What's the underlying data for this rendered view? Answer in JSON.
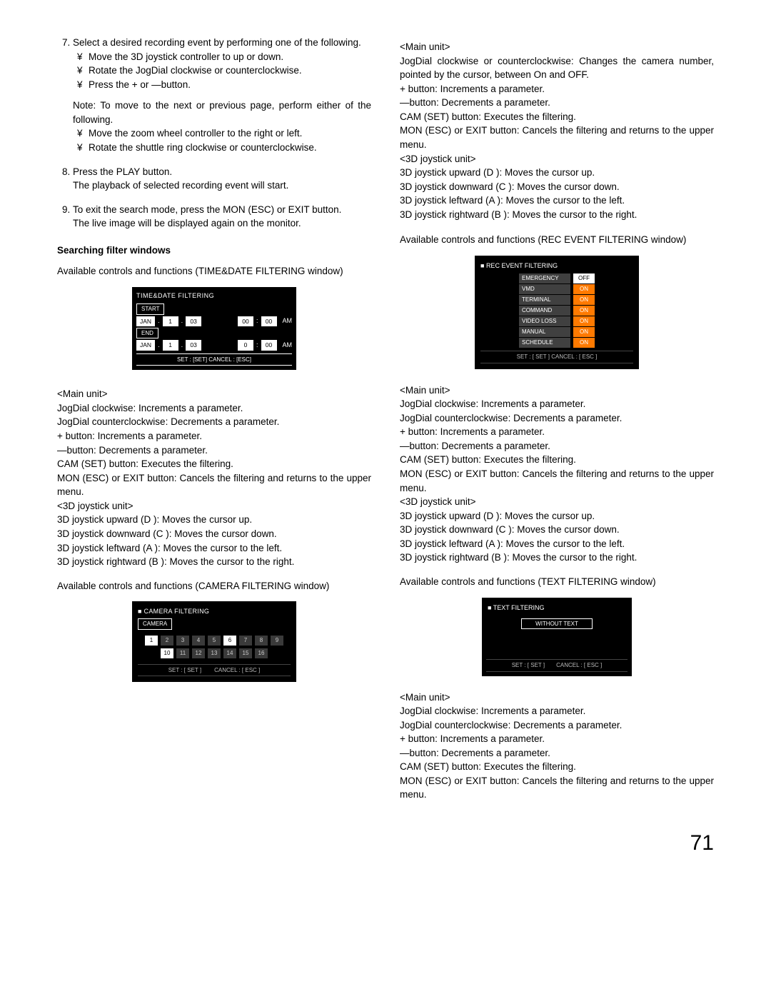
{
  "pageNumber": "71",
  "left": {
    "step7": {
      "text": "Select a desired recording event by performing one of the following.",
      "bullets": [
        "Move the 3D joystick controller to up or down.",
        "Rotate the JogDial clockwise or counterclockwise.",
        "Press the + or —button."
      ],
      "note": "Note: To move to the next or previous page, perform either of the following.",
      "noteBullets": [
        "Move the zoom wheel controller to the right or left.",
        "Rotate the shuttle ring clockwise or counterclockwise."
      ]
    },
    "step8": {
      "l1": "Press the PLAY button.",
      "l2": "The playback of selected recording event will start."
    },
    "step9": {
      "l1": "To exit the search mode, press the MON (ESC) or EXIT button.",
      "l2": "The live image will be displayed again on the monitor."
    },
    "searchingTitle": "Searching filter windows",
    "avail_td": "Available controls and functions (TIME&DATE FILTERING window)",
    "avail_cam": "Available controls and functions (CAMERA FILTERING window)",
    "panel_td": {
      "title": "TIME&DATE FILTERING",
      "startLabel": "START",
      "endLabel": "END",
      "row1": {
        "mon": "JAN",
        "d": "1",
        "y": "03",
        "h": "00",
        "m": "00",
        "ampm": "AM"
      },
      "row2": {
        "mon": "JAN",
        "d": "1",
        "y": "03",
        "h": "0",
        "m": "00",
        "ampm": "AM"
      },
      "foot": "SET : [SET]  CANCEL : [ESC]"
    },
    "panel_cam": {
      "title": "CAMERA FILTERING",
      "sub": "CAMERA",
      "cells": [
        {
          "n": "1",
          "on": true
        },
        {
          "n": "2",
          "on": false
        },
        {
          "n": "3",
          "on": false
        },
        {
          "n": "4",
          "on": false
        },
        {
          "n": "5",
          "on": false
        },
        {
          "n": "6",
          "on": true
        },
        {
          "n": "7",
          "on": false
        },
        {
          "n": "8",
          "on": false
        },
        {
          "n": "9",
          "on": false
        },
        {
          "n": "10",
          "on": true
        },
        {
          "n": "11",
          "on": false
        },
        {
          "n": "12",
          "on": false
        },
        {
          "n": "13",
          "on": false
        },
        {
          "n": "14",
          "on": false
        },
        {
          "n": "15",
          "on": false
        },
        {
          "n": "16",
          "on": false
        }
      ],
      "foot_set": "SET : [ SET ]",
      "foot_cancel": "CANCEL : [ ESC ]"
    },
    "ctrl_td": {
      "mainUnit": "<Main unit>",
      "lines": [
        "JogDial clockwise: Increments a parameter.",
        "JogDial counterclockwise: Decrements a parameter.",
        "+ button: Increments a parameter.",
        "—button: Decrements a parameter.",
        "CAM (SET) button: Executes the filtering.",
        "MON (ESC) or EXIT button: Cancels the filtering and returns to the upper menu."
      ],
      "joyUnit": "<3D joystick unit>",
      "joyLines": [
        "3D joystick upward (D ): Moves the cursor up.",
        "3D joystick downward (C ): Moves the cursor down.",
        "3D joystick leftward (A ): Moves the cursor to the left.",
        "3D joystick rightward (B ): Moves the cursor to the right."
      ]
    }
  },
  "right": {
    "ctrl_cam": {
      "mainUnit": "<Main unit>",
      "lines": [
        "JogDial clockwise or counterclockwise: Changes the camera number, pointed by the cursor, between On and OFF.",
        "+ button: Increments a parameter.",
        "—button: Decrements a parameter.",
        "CAM (SET) button: Executes the filtering.",
        "MON (ESC) or EXIT button: Cancels the filtering and returns to the upper menu."
      ],
      "joyUnit": "<3D joystick unit>",
      "joyLines": [
        "3D joystick upward (D ): Moves the cursor up.",
        "3D joystick downward (C ): Moves the cursor down.",
        "3D joystick leftward (A ): Moves the cursor to the left.",
        "3D joystick rightward (B ): Moves the cursor to the right."
      ]
    },
    "avail_rec": "Available controls and functions (REC EVENT FILTERING window)",
    "panel_rec": {
      "title": "REC EVENT FILTERING",
      "rows": [
        {
          "label": "EMERGENCY",
          "val": "OFF",
          "on": false
        },
        {
          "label": "VMD",
          "val": "ON",
          "on": true
        },
        {
          "label": "TERMINAL",
          "val": "ON",
          "on": true
        },
        {
          "label": "COMMAND",
          "val": "ON",
          "on": true
        },
        {
          "label": "VIDEO LOSS",
          "val": "ON",
          "on": true
        },
        {
          "label": "MANUAL",
          "val": "ON",
          "on": true
        },
        {
          "label": "SCHEDULE",
          "val": "ON",
          "on": true
        }
      ],
      "foot": "SET : [ SET ]     CANCEL : [ ESC ]"
    },
    "ctrl_rec": {
      "mainUnit": "<Main unit>",
      "lines": [
        "JogDial clockwise: Increments a parameter.",
        "JogDial counterclockwise: Decrements a parameter.",
        "+ button: Increments a parameter.",
        "—button: Decrements a parameter.",
        "CAM (SET) button: Executes the filtering.",
        "MON (ESC) or EXIT button: Cancels the filtering and returns to the upper menu."
      ],
      "joyUnit": "<3D joystick unit>",
      "joyLines": [
        "3D joystick upward (D ): Moves the cursor up.",
        "3D joystick downward (C ): Moves the cursor down.",
        "3D joystick leftward (A ): Moves the cursor to the left.",
        "3D joystick rightward (B ): Moves the cursor to the right."
      ]
    },
    "avail_text": "Available controls and functions (TEXT FILTERING window)",
    "panel_text": {
      "title": "TEXT FILTERING",
      "box": "WITHOUT TEXT",
      "foot_set": "SET : [ SET ]",
      "foot_cancel": "CANCEL : [ ESC ]"
    },
    "ctrl_text": {
      "mainUnit": "<Main unit>",
      "lines": [
        "JogDial clockwise: Increments a parameter.",
        "JogDial counterclockwise: Decrements a parameter.",
        "+ button: Increments a parameter.",
        "—button: Decrements a parameter.",
        "CAM (SET) button: Executes the filtering.",
        "MON (ESC) or EXIT button: Cancels the filtering and returns to the upper menu."
      ]
    }
  }
}
